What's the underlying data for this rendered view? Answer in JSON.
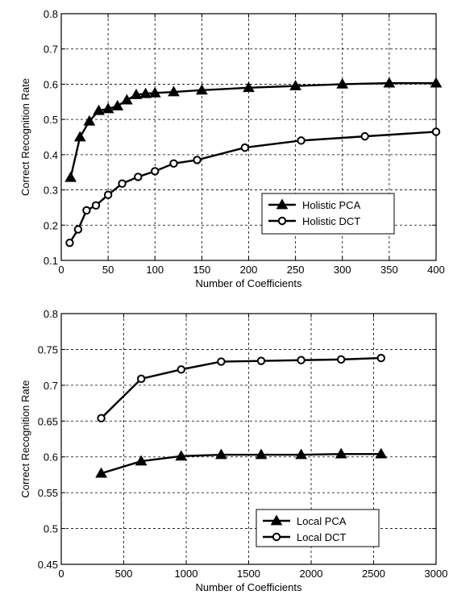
{
  "chart_data": [
    {
      "type": "line",
      "title": "",
      "xlabel": "Number of Coefficients",
      "ylabel": "Correct Recognition Rate",
      "xlim": [
        0,
        400
      ],
      "ylim": [
        0.1,
        0.8
      ],
      "xticks": [
        0,
        50,
        100,
        150,
        200,
        250,
        300,
        350,
        400
      ],
      "yticks": [
        0.1,
        0.2,
        0.3,
        0.4,
        0.5,
        0.6,
        0.7,
        0.8
      ],
      "xtick_labels": [
        "0",
        "50",
        "100",
        "150",
        "200",
        "250",
        "300",
        "350",
        "400"
      ],
      "ytick_labels": [
        "0.1",
        "0.2",
        "0.3",
        "0.4",
        "0.5",
        "0.6",
        "0.7",
        "0.8"
      ],
      "grid": true,
      "legend_position": "bottom-right",
      "series": [
        {
          "name": "Holistic PCA",
          "marker": "triangle",
          "x": [
            10,
            20,
            30,
            40,
            50,
            60,
            70,
            80,
            90,
            100,
            120,
            150,
            200,
            250,
            300,
            350,
            400
          ],
          "y": [
            0.335,
            0.45,
            0.495,
            0.525,
            0.53,
            0.538,
            0.555,
            0.57,
            0.573,
            0.575,
            0.578,
            0.583,
            0.59,
            0.595,
            0.6,
            0.603,
            0.603
          ]
        },
        {
          "name": "Holistic DCT",
          "marker": "circle",
          "x": [
            9,
            18,
            27,
            37,
            50,
            65,
            82,
            100,
            120,
            145,
            196,
            256,
            324,
            400
          ],
          "y": [
            0.15,
            0.188,
            0.242,
            0.256,
            0.286,
            0.318,
            0.337,
            0.353,
            0.375,
            0.385,
            0.42,
            0.44,
            0.452,
            0.465
          ]
        }
      ]
    },
    {
      "type": "line",
      "title": "",
      "xlabel": "Number of Coefficients",
      "ylabel": "Correct Recognition Rate",
      "xlim": [
        0,
        3000
      ],
      "ylim": [
        0.45,
        0.8
      ],
      "xticks": [
        0,
        500,
        1000,
        1500,
        2000,
        2500,
        3000
      ],
      "yticks": [
        0.45,
        0.5,
        0.55,
        0.6,
        0.65,
        0.7,
        0.75,
        0.8
      ],
      "xtick_labels": [
        "0",
        "500",
        "1000",
        "1500",
        "2000",
        "2500",
        "3000"
      ],
      "ytick_labels": [
        "0.45",
        "0.5",
        "0.55",
        "0.6",
        "0.65",
        "0.7",
        "0.75",
        "0.8"
      ],
      "grid": true,
      "legend_position": "bottom-center",
      "series": [
        {
          "name": "Local PCA",
          "marker": "triangle",
          "x": [
            320,
            640,
            960,
            1280,
            1600,
            1920,
            2240,
            2560
          ],
          "y": [
            0.577,
            0.594,
            0.601,
            0.603,
            0.603,
            0.603,
            0.604,
            0.604
          ]
        },
        {
          "name": "Local DCT",
          "marker": "circle",
          "x": [
            320,
            640,
            960,
            1280,
            1600,
            1920,
            2240,
            2560
          ],
          "y": [
            0.654,
            0.709,
            0.722,
            0.733,
            0.734,
            0.735,
            0.736,
            0.738
          ]
        }
      ]
    }
  ]
}
